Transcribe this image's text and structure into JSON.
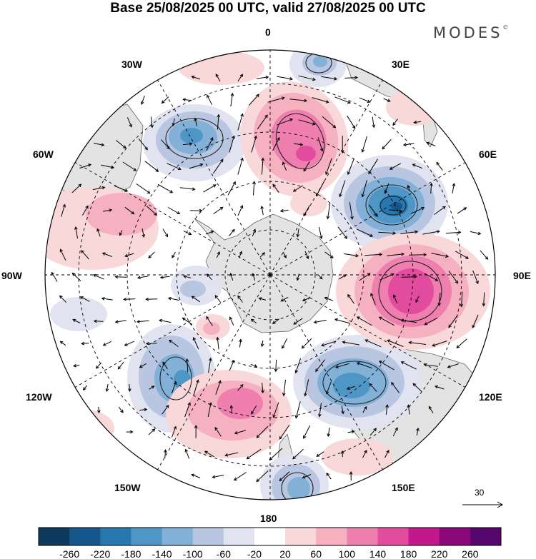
{
  "title": "Base 25/08/2025 00 UTC, valid 27/08/2025 00 UTC",
  "brand": {
    "name": "MODES",
    "mark": "©"
  },
  "longitude_labels": {
    "lon_0": "0",
    "lon_30e": "30E",
    "lon_60e": "60E",
    "lon_90e": "90E",
    "lon_120e": "120E",
    "lon_150e": "150E",
    "lon_180": "180",
    "lon_150w": "150W",
    "lon_120w": "120W",
    "lon_90w": "90W",
    "lon_60w": "60W",
    "lon_30w": "30W"
  },
  "reference_vector": {
    "value": "30"
  },
  "colorbar": {
    "ticks": [
      "-260",
      "-220",
      "-180",
      "-140",
      "-100",
      "-60",
      "-20",
      "20",
      "60",
      "100",
      "140",
      "180",
      "220",
      "260"
    ],
    "colors": [
      "#0d3a5c",
      "#15578a",
      "#2878b0",
      "#4d96c6",
      "#82b0d6",
      "#b8c6e2",
      "#e2e3f0",
      "#ffffff",
      "#f9d8da",
      "#f6b1c0",
      "#ef7fae",
      "#e14c9e",
      "#c1198c",
      "#8a0879",
      "#55076e"
    ]
  },
  "colors": {
    "land": "#e4e4e4",
    "grid": "#000000",
    "coast": "#555555"
  }
}
